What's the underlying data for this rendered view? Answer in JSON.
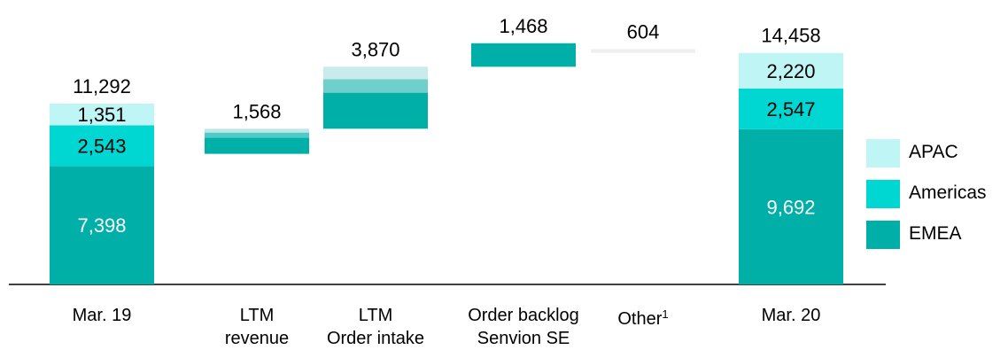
{
  "chart_data": {
    "type": "bar",
    "subtype": "stacked-waterfall",
    "categories": [
      {
        "id": "mar19",
        "lines": [
          "Mar. 19"
        ]
      },
      {
        "id": "ltm_rev",
        "lines": [
          "LTM",
          "revenue"
        ]
      },
      {
        "id": "ltm_oi",
        "lines": [
          "LTM",
          "Order intake"
        ]
      },
      {
        "id": "backlog",
        "lines": [
          "Order backlog",
          "Senvion SE"
        ]
      },
      {
        "id": "other",
        "lines": [
          "Other",
          "1"
        ]
      },
      {
        "id": "mar20",
        "lines": [
          "Mar. 20"
        ]
      }
    ],
    "legend": {
      "position": "right",
      "entries": [
        {
          "name": "APAC",
          "color": "#BFF5F5"
        },
        {
          "name": "Americas",
          "color": "#00D7D2"
        },
        {
          "name": "EMEA",
          "color": "#00AFA8"
        }
      ]
    },
    "bars": [
      {
        "category": "Mar. 19",
        "kind": "total",
        "total": 11292,
        "total_label": "11,292",
        "segments": [
          {
            "series": "EMEA",
            "value": 7398,
            "label": "7,398",
            "color": "#00AFA8",
            "label_color": "#ffffff"
          },
          {
            "series": "Americas",
            "value": 2543,
            "label": "2,543",
            "color": "#00D7D2",
            "label_color": "#000000"
          },
          {
            "series": "APAC",
            "value": 1351,
            "label": "1,351",
            "color": "#BFF5F5",
            "label_color": "#000000"
          }
        ]
      },
      {
        "category": "LTM revenue",
        "kind": "decrease",
        "total": 1568,
        "total_label": "1,568",
        "start": 9724,
        "segments": [
          {
            "series": "EMEA",
            "value": 1000,
            "color": "#00AFA8"
          },
          {
            "series": "Americas",
            "value": 328,
            "color": "#4FCBC7"
          },
          {
            "series": "APAC",
            "value": 240,
            "color": "#BEE8E8"
          }
        ]
      },
      {
        "category": "LTM Order intake",
        "kind": "increase",
        "total": 3870,
        "total_label": "3,870",
        "start": 9724,
        "segments": [
          {
            "series": "EMEA",
            "value": 2250,
            "color": "#00AFA8"
          },
          {
            "series": "Americas",
            "value": 850,
            "color": "#6FCFCB"
          },
          {
            "series": "APAC",
            "value": 770,
            "color": "#C8EBEB"
          }
        ]
      },
      {
        "category": "Order backlog Senvion SE",
        "kind": "increase",
        "total": 1468,
        "total_label": "1,468",
        "start": 13594,
        "segments": [
          {
            "series": "EMEA",
            "value": 1468,
            "color": "#00AFA8"
          }
        ]
      },
      {
        "category": "Other",
        "kind": "decrease",
        "total": 604,
        "total_label": "604",
        "start": 15062,
        "segments": [
          {
            "series": "Other",
            "value": 604,
            "color": "#EFEFEF",
            "height_value": 240
          }
        ]
      },
      {
        "category": "Mar. 20",
        "kind": "total",
        "total": 14458,
        "total_label": "14,458",
        "segments": [
          {
            "series": "EMEA",
            "value": 9692,
            "label": "9,692",
            "color": "#00AFA8",
            "label_color": "#ffffff"
          },
          {
            "series": "Americas",
            "value": 2547,
            "label": "2,547",
            "color": "#00D7D2",
            "label_color": "#000000"
          },
          {
            "series": "APAC",
            "value": 2220,
            "label": "2,220",
            "color": "#BFF5F5",
            "label_color": "#000000"
          }
        ]
      }
    ],
    "ylim": [
      0,
      16000
    ],
    "grid": false,
    "title": "",
    "xlabel": "",
    "ylabel": ""
  }
}
